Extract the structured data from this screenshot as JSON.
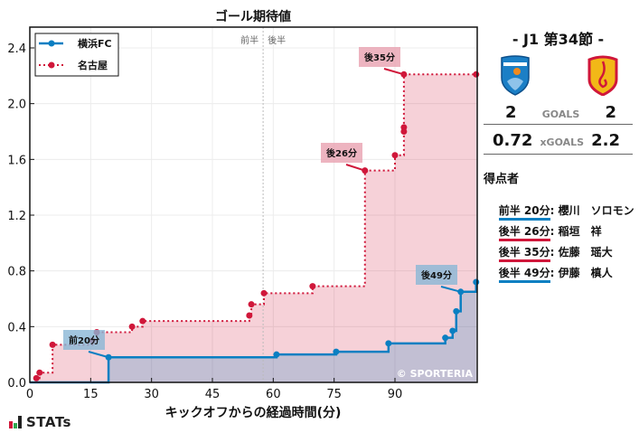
{
  "chart_data": {
    "type": "line",
    "subtype": "step",
    "title": "ゴール期待値",
    "xlabel": "キックオフからの経過時間(分)",
    "ylabel": "",
    "xlim": [
      0,
      110
    ],
    "ylim": [
      0,
      2.5
    ],
    "x_ticks": [
      0,
      15,
      30,
      45,
      60,
      75,
      90
    ],
    "y_ticks": [
      0.0,
      0.4,
      0.8,
      1.2,
      1.6,
      2.0,
      2.4
    ],
    "grid": true,
    "legend_position": "upper left",
    "half_time_marker": {
      "x": 57.5,
      "labels": [
        "前半",
        "後半"
      ]
    },
    "series": [
      {
        "name": "横浜FC",
        "color": "#0a7fc2",
        "line_style": "solid",
        "points": [
          [
            0,
            0
          ],
          [
            19.4,
            0.18
          ],
          [
            60.8,
            0.2
          ],
          [
            75.5,
            0.22
          ],
          [
            88.4,
            0.28
          ],
          [
            102.4,
            0.32
          ],
          [
            104.2,
            0.37
          ],
          [
            105.1,
            0.51
          ],
          [
            106.2,
            0.65
          ],
          [
            110,
            0.72
          ]
        ]
      },
      {
        "name": "名古屋",
        "color": "#d0173a",
        "line_style": "dotted",
        "points": [
          [
            0,
            0
          ],
          [
            1.6,
            0.03
          ],
          [
            2.4,
            0.07
          ],
          [
            5.6,
            0.27
          ],
          [
            15.4,
            0.3
          ],
          [
            16.5,
            0.36
          ],
          [
            25.2,
            0.4
          ],
          [
            27.8,
            0.44
          ],
          [
            54.1,
            0.48
          ],
          [
            54.6,
            0.56
          ],
          [
            57.7,
            0.64
          ],
          [
            69.7,
            0.69
          ],
          [
            82.6,
            1.52
          ],
          [
            90.0,
            1.63
          ],
          [
            92.2,
            1.8
          ],
          [
            92.2,
            1.83
          ],
          [
            92.2,
            2.21
          ],
          [
            110,
            2.21
          ]
        ]
      }
    ],
    "annotations": [
      {
        "text": "前20分",
        "team": "横浜FC",
        "x": 19.4,
        "y": 0.18
      },
      {
        "text": "後26分",
        "team": "名古屋",
        "x": 82.6,
        "y": 1.52
      },
      {
        "text": "後35分",
        "team": "名古屋",
        "x": 92.2,
        "y": 2.21
      },
      {
        "text": "後49分",
        "team": "横浜FC",
        "x": 106.2,
        "y": 0.65
      }
    ],
    "watermark": "© SPORTERIA"
  },
  "match": {
    "title": "- J1 第34節 -",
    "home_team": "横浜FC",
    "away_team": "名古屋",
    "home_goals": "2",
    "away_goals": "2",
    "goals_label": "GOALS",
    "home_xg": "0.72",
    "away_xg": "2.2",
    "xg_label": "xGOALS"
  },
  "scorers": {
    "title": "得点者",
    "items": [
      {
        "time": "前半 20分",
        "name": ": 櫻川　ソロモン",
        "color": "#0a7fc2"
      },
      {
        "time": "後半 26分",
        "name": ": 稲垣　祥",
        "color": "#d0173a"
      },
      {
        "time": "後半 35分",
        "name": ": 佐藤　瑶大",
        "color": "#d0173a"
      },
      {
        "time": "後半 49分",
        "name": ": 伊藤　槙人",
        "color": "#0a7fc2"
      }
    ]
  },
  "footer": {
    "logo_text": "STATs"
  }
}
